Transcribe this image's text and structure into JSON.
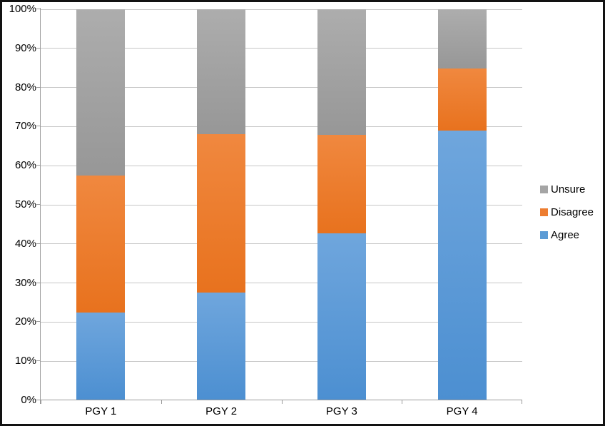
{
  "chart_data": {
    "type": "bar",
    "stacked": true,
    "percent_stacked": true,
    "title": "",
    "xlabel": "",
    "ylabel": "",
    "categories": [
      "PGY 1",
      "PGY 2",
      "PGY 3",
      "PGY 4"
    ],
    "series": [
      {
        "name": "Agree",
        "color": "#5B9BD5",
        "fill_top": "#6FA6DD",
        "fill_bottom": "#4C8FD1",
        "values": [
          22.5,
          27.6,
          42.7,
          68.9
        ]
      },
      {
        "name": "Disagree",
        "color": "#ED7D31",
        "fill_top": "#F0883F",
        "fill_bottom": "#E8721E",
        "values": [
          35.0,
          40.5,
          25.1,
          16.0
        ]
      },
      {
        "name": "Unsure",
        "color": "#A5A5A5",
        "fill_top": "#ADADAD",
        "fill_bottom": "#979797",
        "values": [
          42.5,
          31.9,
          32.2,
          15.1
        ]
      }
    ],
    "y_axis": {
      "min": 0,
      "max": 100,
      "step": 10,
      "tick_labels": [
        "0%",
        "10%",
        "20%",
        "30%",
        "40%",
        "50%",
        "60%",
        "70%",
        "80%",
        "90%",
        "100%"
      ]
    },
    "legend": {
      "position": "right",
      "entries_top_to_bottom": [
        "Unsure",
        "Disagree",
        "Agree"
      ]
    },
    "grid": true,
    "colors": {
      "gridline": "#C6C6C6",
      "axis": "#9B9B9B",
      "text": "#000000",
      "frame_border": "#121212",
      "background": "#FFFFFF"
    }
  }
}
